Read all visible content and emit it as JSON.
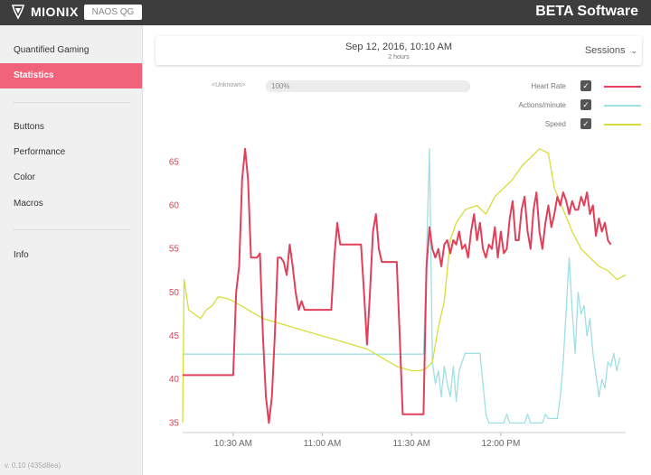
{
  "app": {
    "brand": "MIONIX",
    "device": "NAOS QG",
    "title": "BETA Software"
  },
  "sidebar": {
    "items": [
      {
        "label": "Quantified Gaming",
        "active": false
      },
      {
        "label": "Statistics",
        "active": true
      },
      {
        "label": "Buttons",
        "active": false
      },
      {
        "label": "Performance",
        "active": false
      },
      {
        "label": "Color",
        "active": false
      },
      {
        "label": "Macros",
        "active": false
      },
      {
        "label": "Info",
        "active": false
      }
    ],
    "version": "v. 0.10 (435d8ea)"
  },
  "session": {
    "date": "Sep 12, 2016, 10:10 AM",
    "duration": "2 hours",
    "dropdown_label": "Sessions",
    "dropdown_icon": "chevron-down-icon"
  },
  "filter": {
    "label": "<Unknown>",
    "progress_text": "100%",
    "progress_fraction": 1.0
  },
  "legend": [
    {
      "label": "Heart Rate",
      "checked": true,
      "color": "#e0405a"
    },
    {
      "label": "Actions/minute",
      "checked": true,
      "color": "#9ee0e4"
    },
    {
      "label": "Speed",
      "checked": true,
      "color": "#d7dd3a"
    }
  ],
  "chart_data": {
    "type": "line",
    "xlim": [
      "10:13",
      "12:42"
    ],
    "x_ticks": [
      "10:30 AM",
      "11:00 AM",
      "11:30 AM",
      "12:00 PM"
    ],
    "x_tick_times": [
      "10:30",
      "11:00",
      "11:30",
      "12:00"
    ],
    "ylim": [
      34,
      67
    ],
    "y_ticks": [
      "35",
      "40",
      "45",
      "50",
      "55",
      "60",
      "65"
    ],
    "y_tick_values": [
      35,
      40,
      45,
      50,
      55,
      60,
      65
    ],
    "grid": false,
    "series": [
      {
        "name": "Actions/minute",
        "color": "#9ee0e4",
        "points": [
          [
            "10:13",
            42.9
          ],
          [
            "11:34",
            42.9
          ],
          [
            "11:35",
            54.0
          ],
          [
            "11:36",
            66.5
          ],
          [
            "11:37",
            42.0
          ],
          [
            "11:38",
            39.5
          ],
          [
            "11:39",
            41.0
          ],
          [
            "11:40",
            38.0
          ],
          [
            "11:41",
            41.5
          ],
          [
            "11:42",
            39.5
          ],
          [
            "11:43",
            38.0
          ],
          [
            "11:44",
            41.5
          ],
          [
            "11:45",
            37.5
          ],
          [
            "11:46",
            41.0
          ],
          [
            "11:48",
            43.0
          ],
          [
            "11:53",
            43.0
          ],
          [
            "11:55",
            36.0
          ],
          [
            "11:56",
            35.0
          ],
          [
            "12:01",
            35.0
          ],
          [
            "12:02",
            36.0
          ],
          [
            "12:03",
            35.0
          ],
          [
            "12:08",
            35.0
          ],
          [
            "12:09",
            36.0
          ],
          [
            "12:10",
            35.0
          ],
          [
            "12:14",
            35.0
          ],
          [
            "12:15",
            36.0
          ],
          [
            "12:16",
            35.5
          ],
          [
            "12:19",
            35.5
          ],
          [
            "12:20",
            38.0
          ],
          [
            "12:21",
            42.0
          ],
          [
            "12:22",
            48.0
          ],
          [
            "12:23",
            54.0
          ],
          [
            "12:24",
            48.0
          ],
          [
            "12:25",
            43.0
          ],
          [
            "12:26",
            50.0
          ],
          [
            "12:27",
            47.5
          ],
          [
            "12:28",
            48.5
          ],
          [
            "12:29",
            45.0
          ],
          [
            "12:30",
            47.0
          ],
          [
            "12:31",
            43.0
          ],
          [
            "12:32",
            40.5
          ],
          [
            "12:33",
            38.0
          ],
          [
            "12:34",
            40.0
          ],
          [
            "12:35",
            39.0
          ],
          [
            "12:36",
            42.0
          ],
          [
            "12:37",
            41.5
          ],
          [
            "12:38",
            43.0
          ],
          [
            "12:39",
            41.0
          ],
          [
            "12:40",
            42.5
          ]
        ]
      },
      {
        "name": "Speed",
        "color": "#d7dd3a",
        "points": [
          [
            "10:13",
            35.0
          ],
          [
            "10:13:30",
            51.5
          ],
          [
            "10:15",
            48.0
          ],
          [
            "10:17",
            47.5
          ],
          [
            "10:19",
            47.0
          ],
          [
            "10:21",
            48.0
          ],
          [
            "10:23",
            48.5
          ],
          [
            "10:25",
            49.5
          ],
          [
            "10:28",
            49.3
          ],
          [
            "10:30",
            49.0
          ],
          [
            "10:35",
            48.0
          ],
          [
            "10:40",
            47.0
          ],
          [
            "10:45",
            46.5
          ],
          [
            "10:50",
            46.0
          ],
          [
            "10:55",
            45.5
          ],
          [
            "11:00",
            45.0
          ],
          [
            "11:05",
            44.5
          ],
          [
            "11:10",
            44.0
          ],
          [
            "11:15",
            43.5
          ],
          [
            "11:20",
            42.5
          ],
          [
            "11:25",
            41.5
          ],
          [
            "11:30",
            41.0
          ],
          [
            "11:33",
            41.0
          ],
          [
            "11:35",
            41.3
          ],
          [
            "11:37",
            42.0
          ],
          [
            "11:39",
            46.0
          ],
          [
            "11:41",
            49.0
          ],
          [
            "11:43",
            56.0
          ],
          [
            "11:45",
            58.0
          ],
          [
            "11:48",
            59.5
          ],
          [
            "11:52",
            60.0
          ],
          [
            "11:55",
            59.0
          ],
          [
            "11:58",
            61.0
          ],
          [
            "12:01",
            62.0
          ],
          [
            "12:04",
            63.0
          ],
          [
            "12:07",
            64.5
          ],
          [
            "12:10",
            65.5
          ],
          [
            "12:13",
            66.5
          ],
          [
            "12:16",
            66.0
          ],
          [
            "12:18",
            62.0
          ],
          [
            "12:21",
            59.5
          ],
          [
            "12:24",
            57.0
          ],
          [
            "12:27",
            55.0
          ],
          [
            "12:30",
            54.0
          ],
          [
            "12:33",
            53.0
          ],
          [
            "12:36",
            52.5
          ],
          [
            "12:39",
            51.5
          ],
          [
            "12:42",
            52.0
          ]
        ]
      },
      {
        "name": "Heart Rate",
        "color": "#e0405a",
        "points": [
          [
            "10:13",
            40.5
          ],
          [
            "10:30",
            40.5
          ],
          [
            "10:31",
            50.0
          ],
          [
            "10:32",
            53.0
          ],
          [
            "10:33",
            63.0
          ],
          [
            "10:34",
            66.5
          ],
          [
            "10:35",
            63.0
          ],
          [
            "10:36",
            54.0
          ],
          [
            "10:38",
            54.0
          ],
          [
            "10:39",
            54.5
          ],
          [
            "10:40",
            45.0
          ],
          [
            "10:41",
            38.0
          ],
          [
            "10:42",
            35.0
          ],
          [
            "10:43",
            38.0
          ],
          [
            "10:44",
            45.0
          ],
          [
            "10:45",
            54.0
          ],
          [
            "10:46",
            54.0
          ],
          [
            "10:47",
            53.5
          ],
          [
            "10:48",
            52.0
          ],
          [
            "10:49",
            55.5
          ],
          [
            "10:50",
            53.0
          ],
          [
            "10:51",
            50.0
          ],
          [
            "10:52",
            48.0
          ],
          [
            "10:53",
            49.0
          ],
          [
            "10:54",
            48.0
          ],
          [
            "11:03",
            48.0
          ],
          [
            "11:04",
            54.0
          ],
          [
            "11:05",
            58.0
          ],
          [
            "11:06",
            55.5
          ],
          [
            "11:13",
            55.5
          ],
          [
            "11:14",
            50.0
          ],
          [
            "11:15",
            44.0
          ],
          [
            "11:16",
            50.0
          ],
          [
            "11:17",
            57.0
          ],
          [
            "11:18",
            59.0
          ],
          [
            "11:19",
            55.0
          ],
          [
            "11:20",
            53.5
          ],
          [
            "11:25",
            53.5
          ],
          [
            "11:26",
            45.0
          ],
          [
            "11:27",
            36.0
          ],
          [
            "11:34",
            36.0
          ],
          [
            "11:35",
            53.0
          ],
          [
            "11:36",
            57.5
          ],
          [
            "11:37",
            55.0
          ],
          [
            "11:38",
            54.0
          ],
          [
            "11:39",
            55.0
          ],
          [
            "11:40",
            53.0
          ],
          [
            "11:41",
            55.5
          ],
          [
            "11:42",
            56.0
          ],
          [
            "11:43",
            54.5
          ],
          [
            "11:44",
            56.0
          ],
          [
            "11:45",
            55.5
          ],
          [
            "11:46",
            57.0
          ],
          [
            "11:47",
            55.0
          ],
          [
            "11:48",
            55.5
          ],
          [
            "11:49",
            54.0
          ],
          [
            "11:50",
            57.0
          ],
          [
            "11:51",
            59.0
          ],
          [
            "11:52",
            56.0
          ],
          [
            "11:53",
            58.0
          ],
          [
            "11:54",
            55.0
          ],
          [
            "11:55",
            54.0
          ],
          [
            "11:56",
            55.5
          ],
          [
            "11:57",
            55.0
          ],
          [
            "11:58",
            57.5
          ],
          [
            "11:59",
            54.0
          ],
          [
            "12:00",
            57.0
          ],
          [
            "12:01",
            54.5
          ],
          [
            "12:02",
            55.0
          ],
          [
            "12:03",
            58.5
          ],
          [
            "12:04",
            60.5
          ],
          [
            "12:05",
            56.0
          ],
          [
            "12:06",
            56.0
          ],
          [
            "12:07",
            59.5
          ],
          [
            "12:08",
            61.0
          ],
          [
            "12:09",
            57.0
          ],
          [
            "12:10",
            55.0
          ],
          [
            "12:11",
            59.5
          ],
          [
            "12:12",
            61.5
          ],
          [
            "12:13",
            57.0
          ],
          [
            "12:14",
            55.0
          ],
          [
            "12:15",
            58.0
          ],
          [
            "12:16",
            60.0
          ],
          [
            "12:17",
            57.5
          ],
          [
            "12:18",
            59.0
          ],
          [
            "12:19",
            61.0
          ],
          [
            "12:20",
            60.0
          ],
          [
            "12:21",
            61.5
          ],
          [
            "12:22",
            60.5
          ],
          [
            "12:23",
            59.0
          ],
          [
            "12:24",
            60.5
          ],
          [
            "12:25",
            59.5
          ],
          [
            "12:26",
            59.5
          ],
          [
            "12:27",
            61.0
          ],
          [
            "12:28",
            60.0
          ],
          [
            "12:29",
            61.5
          ],
          [
            "12:30",
            59.0
          ],
          [
            "12:31",
            60.0
          ],
          [
            "12:32",
            56.5
          ],
          [
            "12:33",
            58.5
          ],
          [
            "12:34",
            57.0
          ],
          [
            "12:35",
            58.0
          ],
          [
            "12:36",
            56.0
          ],
          [
            "12:37",
            55.5
          ]
        ]
      }
    ]
  }
}
